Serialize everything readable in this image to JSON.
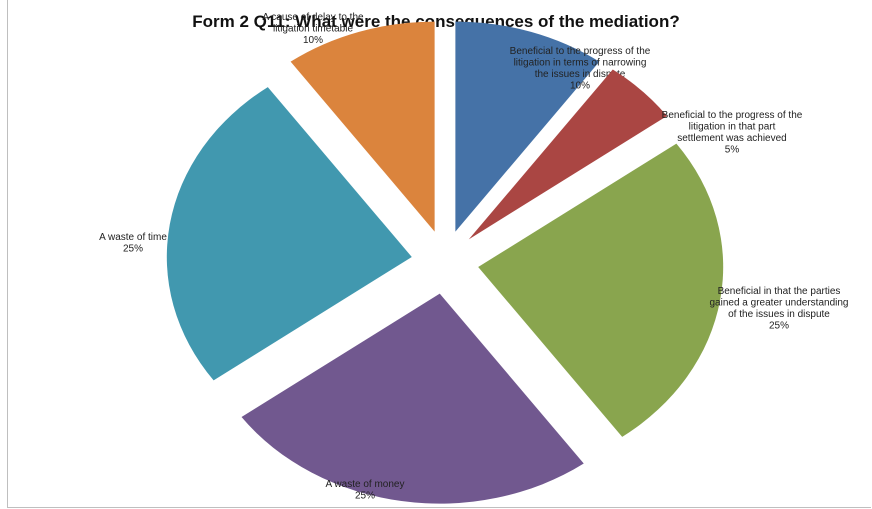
{
  "chart_data": {
    "type": "pie",
    "title": "Form 2 Q11: What were the consequences of the mediation?",
    "exploded": true,
    "slices": [
      {
        "label": [
          "Beneficial to the progress of the",
          "litigation in terms of narrowing",
          "the issues in dispute"
        ],
        "value": 10,
        "value_label": "10%",
        "color": "#4572a7"
      },
      {
        "label": [
          "Beneficial to the progress of the",
          "litigation in that part",
          "settlement was achieved"
        ],
        "value": 5,
        "value_label": "5%",
        "color": "#aa4643"
      },
      {
        "label": [
          "Beneficial in that the parties",
          "gained a greater understanding",
          "of the issues in dispute"
        ],
        "value": 25,
        "value_label": "25%",
        "color": "#89a54e"
      },
      {
        "label": [
          "A waste of money"
        ],
        "value": 25,
        "value_label": "25%",
        "color": "#71588f"
      },
      {
        "label": [
          "A waste of time"
        ],
        "value": 25,
        "value_label": "25%",
        "color": "#4198af"
      },
      {
        "label": [
          "A cause of delay to the",
          "litigation timetable"
        ],
        "value": 10,
        "value_label": "10%",
        "color": "#db843d"
      }
    ]
  }
}
